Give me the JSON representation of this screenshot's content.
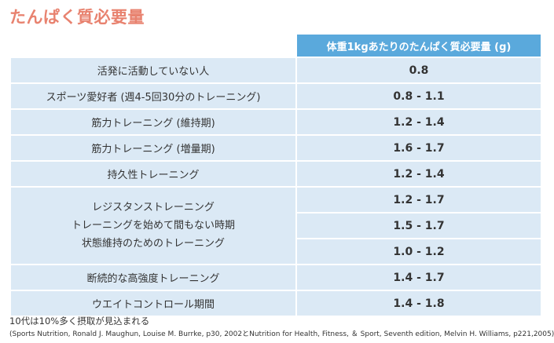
{
  "title": "たんぱく質必要量",
  "table": {
    "header": "体重1kgあたりのたんぱく質必要量 (g)",
    "rows": [
      {
        "label": "活発に活動していない人",
        "value": "0.8"
      },
      {
        "label": "スポーツ愛好者 (週4-5回30分のトレーニング)",
        "value": "0.8 - 1.1"
      },
      {
        "label": "筋力トレーニング (維持期)",
        "value": "1.2 - 1.4"
      },
      {
        "label": "筋力トレーニング (増量期)",
        "value": "1.6 - 1.7"
      },
      {
        "label": "持久性トレーニング",
        "value": "1.2 - 1.4"
      }
    ],
    "group": {
      "labels": [
        "レジスタンストレーニング",
        "トレーニングを始めて間もない時期",
        "状態維持のためのトレーニング"
      ],
      "values": [
        "1.2 - 1.7",
        "1.5 - 1.7",
        "1.0 - 1.2"
      ]
    },
    "rows_after": [
      {
        "label": "断続的な高強度トレーニング",
        "value": "1.4 - 1.7"
      },
      {
        "label": "ウエイトコントロール期間",
        "value": "1.4 - 1.8"
      }
    ]
  },
  "notes": {
    "teen": "10代は10%多く摂取が見込まれる",
    "source": "(Sports Nutrition, Ronald J. Maughun, Louise M. Burrke, p30, 2002とNutrition for Health, Fitness, ＆ Sport, Seventh edition, Melvin H. Williams, p221,2005)"
  }
}
